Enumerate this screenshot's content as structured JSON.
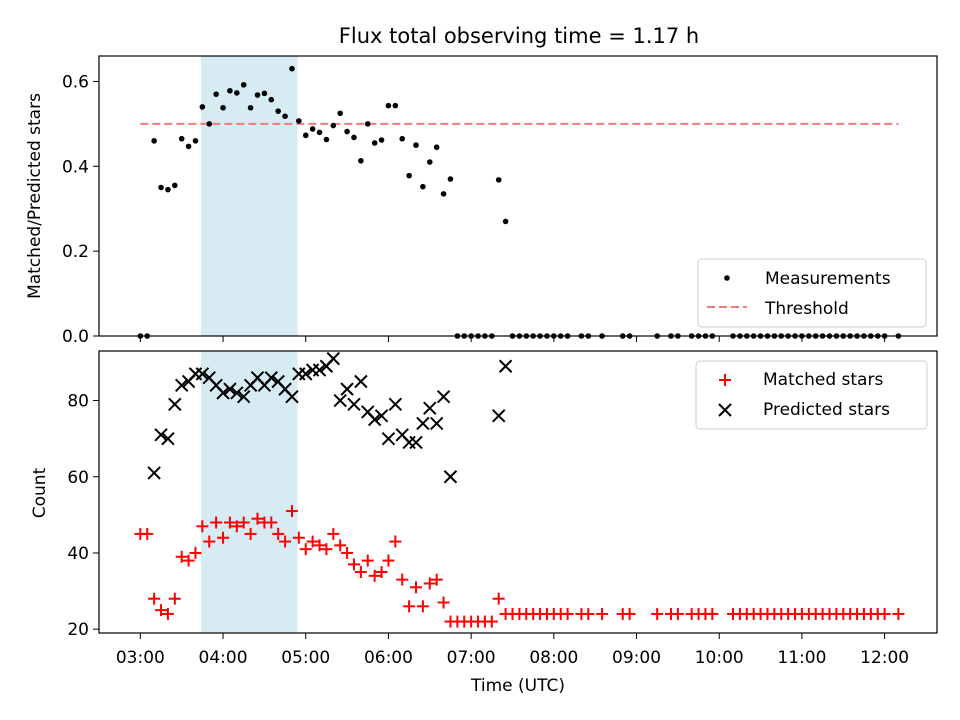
{
  "title": "Flux total observing time = 1.17 h",
  "colors": {
    "measurement": "#000000",
    "threshold": "#f47a7a",
    "matched": "#ff0000",
    "predicted": "#000000",
    "highlight": "#add8e6"
  },
  "chart_data": [
    {
      "type": "scatter",
      "ylabel": "Matched/Predicted stars",
      "ylim": [
        0,
        0.66
      ],
      "yticks": [
        0.0,
        0.2,
        0.4,
        0.6
      ],
      "ytick_labels": [
        "0.0",
        "0.2",
        "0.4",
        "0.6"
      ],
      "grid": false,
      "legend_position": "lower-right",
      "highlight_span": [
        "03:44",
        "04:54"
      ],
      "threshold": 0.5,
      "threshold_x": [
        "03:00",
        "12:10"
      ],
      "legend": [
        "Measurements",
        "Threshold"
      ],
      "series": [
        {
          "name": "Measurements",
          "marker": "dot",
          "points": [
            [
              "03:00",
              0.0
            ],
            [
              "03:05",
              0.0
            ],
            [
              "03:10",
              0.46
            ],
            [
              "03:15",
              0.35
            ],
            [
              "03:20",
              0.345
            ],
            [
              "03:25",
              0.355
            ],
            [
              "03:30",
              0.465
            ],
            [
              "03:35",
              0.447
            ],
            [
              "03:40",
              0.46
            ],
            [
              "03:45",
              0.54
            ],
            [
              "03:50",
              0.5
            ],
            [
              "03:55",
              0.57
            ],
            [
              "04:00",
              0.538
            ],
            [
              "04:05",
              0.578
            ],
            [
              "04:10",
              0.573
            ],
            [
              "04:15",
              0.592
            ],
            [
              "04:20",
              0.538
            ],
            [
              "04:25",
              0.568
            ],
            [
              "04:30",
              0.572
            ],
            [
              "04:35",
              0.557
            ],
            [
              "04:40",
              0.53
            ],
            [
              "04:45",
              0.518
            ],
            [
              "04:50",
              0.63
            ],
            [
              "04:55",
              0.507
            ],
            [
              "05:00",
              0.473
            ],
            [
              "05:05",
              0.488
            ],
            [
              "05:10",
              0.48
            ],
            [
              "05:15",
              0.463
            ],
            [
              "05:20",
              0.496
            ],
            [
              "05:25",
              0.525
            ],
            [
              "05:30",
              0.482
            ],
            [
              "05:35",
              0.468
            ],
            [
              "05:40",
              0.413
            ],
            [
              "05:45",
              0.5
            ],
            [
              "05:50",
              0.455
            ],
            [
              "05:55",
              0.462
            ],
            [
              "06:00",
              0.543
            ],
            [
              "06:05",
              0.543
            ],
            [
              "06:10",
              0.465
            ],
            [
              "06:15",
              0.378
            ],
            [
              "06:20",
              0.45
            ],
            [
              "06:25",
              0.352
            ],
            [
              "06:30",
              0.41
            ],
            [
              "06:35",
              0.445
            ],
            [
              "06:40",
              0.335
            ],
            [
              "06:45",
              0.37
            ],
            [
              "06:50",
              0.0
            ],
            [
              "06:55",
              0.0
            ],
            [
              "07:00",
              0.0
            ],
            [
              "07:05",
              0.0
            ],
            [
              "07:10",
              0.0
            ],
            [
              "07:15",
              0.0
            ],
            [
              "07:20",
              0.368
            ],
            [
              "07:25",
              0.27
            ],
            [
              "07:30",
              0.0
            ],
            [
              "07:35",
              0.0
            ],
            [
              "07:40",
              0.0
            ],
            [
              "07:45",
              0.0
            ],
            [
              "07:50",
              0.0
            ],
            [
              "07:55",
              0.0
            ],
            [
              "08:00",
              0.0
            ],
            [
              "08:05",
              0.0
            ],
            [
              "08:10",
              0.0
            ],
            [
              "08:20",
              0.0
            ],
            [
              "08:25",
              0.0
            ],
            [
              "08:35",
              0.0
            ],
            [
              "08:50",
              0.0
            ],
            [
              "08:55",
              0.0
            ],
            [
              "09:15",
              0.0
            ],
            [
              "09:25",
              0.0
            ],
            [
              "09:30",
              0.0
            ],
            [
              "09:40",
              0.0
            ],
            [
              "09:45",
              0.0
            ],
            [
              "09:50",
              0.0
            ],
            [
              "09:55",
              0.0
            ],
            [
              "10:10",
              0.0
            ],
            [
              "10:15",
              0.0
            ],
            [
              "10:20",
              0.0
            ],
            [
              "10:25",
              0.0
            ],
            [
              "10:30",
              0.0
            ],
            [
              "10:35",
              0.0
            ],
            [
              "10:40",
              0.0
            ],
            [
              "10:45",
              0.0
            ],
            [
              "10:50",
              0.0
            ],
            [
              "10:55",
              0.0
            ],
            [
              "11:00",
              0.0
            ],
            [
              "11:05",
              0.0
            ],
            [
              "11:10",
              0.0
            ],
            [
              "11:15",
              0.0
            ],
            [
              "11:20",
              0.0
            ],
            [
              "11:25",
              0.0
            ],
            [
              "11:30",
              0.0
            ],
            [
              "11:35",
              0.0
            ],
            [
              "11:40",
              0.0
            ],
            [
              "11:45",
              0.0
            ],
            [
              "11:50",
              0.0
            ],
            [
              "11:55",
              0.0
            ],
            [
              "12:00",
              0.0
            ],
            [
              "12:10",
              0.0
            ]
          ]
        }
      ]
    },
    {
      "type": "scatter",
      "xlabel": "Time (UTC)",
      "ylabel": "Count",
      "xlim": [
        "02:30",
        "12:38"
      ],
      "ylim": [
        19,
        93
      ],
      "xticks": [
        "03:00",
        "04:00",
        "05:00",
        "06:00",
        "07:00",
        "08:00",
        "09:00",
        "10:00",
        "11:00",
        "12:00"
      ],
      "yticks": [
        20,
        40,
        60,
        80
      ],
      "ytick_labels": [
        "20",
        "40",
        "60",
        "80"
      ],
      "grid": false,
      "legend_position": "upper-right",
      "highlight_span": [
        "03:44",
        "04:54"
      ],
      "legend": [
        "Matched stars",
        "Predicted stars"
      ],
      "series": [
        {
          "name": "Matched stars",
          "marker": "plus",
          "points": [
            [
              "03:00",
              45
            ],
            [
              "03:05",
              45
            ],
            [
              "03:10",
              28
            ],
            [
              "03:15",
              25
            ],
            [
              "03:20",
              24
            ],
            [
              "03:25",
              28
            ],
            [
              "03:30",
              39
            ],
            [
              "03:35",
              38
            ],
            [
              "03:40",
              40
            ],
            [
              "03:45",
              47
            ],
            [
              "03:50",
              43
            ],
            [
              "03:55",
              48
            ],
            [
              "04:00",
              44
            ],
            [
              "04:05",
              48
            ],
            [
              "04:10",
              47
            ],
            [
              "04:15",
              48
            ],
            [
              "04:20",
              45
            ],
            [
              "04:25",
              49
            ],
            [
              "04:30",
              48
            ],
            [
              "04:35",
              48
            ],
            [
              "04:40",
              45
            ],
            [
              "04:45",
              43
            ],
            [
              "04:50",
              51
            ],
            [
              "04:55",
              44
            ],
            [
              "05:00",
              41
            ],
            [
              "05:05",
              43
            ],
            [
              "05:10",
              42
            ],
            [
              "05:15",
              41
            ],
            [
              "05:20",
              45
            ],
            [
              "05:25",
              42
            ],
            [
              "05:30",
              40
            ],
            [
              "05:35",
              37
            ],
            [
              "05:40",
              35
            ],
            [
              "05:45",
              38
            ],
            [
              "05:50",
              34
            ],
            [
              "05:55",
              35
            ],
            [
              "06:00",
              38
            ],
            [
              "06:05",
              43
            ],
            [
              "06:10",
              33
            ],
            [
              "06:15",
              26
            ],
            [
              "06:20",
              31
            ],
            [
              "06:25",
              26
            ],
            [
              "06:30",
              32
            ],
            [
              "06:35",
              33
            ],
            [
              "06:40",
              27
            ],
            [
              "06:45",
              22
            ],
            [
              "06:50",
              22
            ],
            [
              "06:55",
              22
            ],
            [
              "07:00",
              22
            ],
            [
              "07:05",
              22
            ],
            [
              "07:10",
              22
            ],
            [
              "07:15",
              22
            ],
            [
              "07:20",
              28
            ],
            [
              "07:25",
              24
            ],
            [
              "07:30",
              24
            ],
            [
              "07:35",
              24
            ],
            [
              "07:40",
              24
            ],
            [
              "07:45",
              24
            ],
            [
              "07:50",
              24
            ],
            [
              "07:55",
              24
            ],
            [
              "08:00",
              24
            ],
            [
              "08:05",
              24
            ],
            [
              "08:10",
              24
            ],
            [
              "08:20",
              24
            ],
            [
              "08:25",
              24
            ],
            [
              "08:35",
              24
            ],
            [
              "08:50",
              24
            ],
            [
              "08:55",
              24
            ],
            [
              "09:15",
              24
            ],
            [
              "09:25",
              24
            ],
            [
              "09:30",
              24
            ],
            [
              "09:40",
              24
            ],
            [
              "09:45",
              24
            ],
            [
              "09:50",
              24
            ],
            [
              "09:55",
              24
            ],
            [
              "10:10",
              24
            ],
            [
              "10:15",
              24
            ],
            [
              "10:20",
              24
            ],
            [
              "10:25",
              24
            ],
            [
              "10:30",
              24
            ],
            [
              "10:35",
              24
            ],
            [
              "10:40",
              24
            ],
            [
              "10:45",
              24
            ],
            [
              "10:50",
              24
            ],
            [
              "10:55",
              24
            ],
            [
              "11:00",
              24
            ],
            [
              "11:05",
              24
            ],
            [
              "11:10",
              24
            ],
            [
              "11:15",
              24
            ],
            [
              "11:20",
              24
            ],
            [
              "11:25",
              24
            ],
            [
              "11:30",
              24
            ],
            [
              "11:35",
              24
            ],
            [
              "11:40",
              24
            ],
            [
              "11:45",
              24
            ],
            [
              "11:50",
              24
            ],
            [
              "11:55",
              24
            ],
            [
              "12:00",
              24
            ],
            [
              "12:10",
              24
            ]
          ]
        },
        {
          "name": "Predicted stars",
          "marker": "x",
          "points": [
            [
              "03:10",
              61
            ],
            [
              "03:15",
              71
            ],
            [
              "03:20",
              70
            ],
            [
              "03:25",
              79
            ],
            [
              "03:30",
              84
            ],
            [
              "03:35",
              85
            ],
            [
              "03:40",
              87
            ],
            [
              "03:45",
              87
            ],
            [
              "03:50",
              86
            ],
            [
              "03:55",
              84
            ],
            [
              "04:00",
              82
            ],
            [
              "04:05",
              83
            ],
            [
              "04:10",
              82
            ],
            [
              "04:15",
              81
            ],
            [
              "04:20",
              84
            ],
            [
              "04:25",
              86
            ],
            [
              "04:30",
              84
            ],
            [
              "04:35",
              86
            ],
            [
              "04:40",
              85
            ],
            [
              "04:45",
              83
            ],
            [
              "04:50",
              81
            ],
            [
              "04:55",
              87
            ],
            [
              "05:00",
              87
            ],
            [
              "05:05",
              88
            ],
            [
              "05:10",
              88
            ],
            [
              "05:15",
              89
            ],
            [
              "05:20",
              91
            ],
            [
              "05:25",
              80
            ],
            [
              "05:30",
              83
            ],
            [
              "05:35",
              79
            ],
            [
              "05:40",
              85
            ],
            [
              "05:45",
              77
            ],
            [
              "05:50",
              75
            ],
            [
              "05:55",
              76
            ],
            [
              "06:00",
              70
            ],
            [
              "06:05",
              79
            ],
            [
              "06:10",
              71
            ],
            [
              "06:15",
              69
            ],
            [
              "06:20",
              69
            ],
            [
              "06:25",
              74
            ],
            [
              "06:30",
              78
            ],
            [
              "06:35",
              74
            ],
            [
              "06:40",
              81
            ],
            [
              "06:45",
              60
            ],
            [
              "07:20",
              76
            ],
            [
              "07:25",
              89
            ]
          ]
        }
      ]
    }
  ]
}
